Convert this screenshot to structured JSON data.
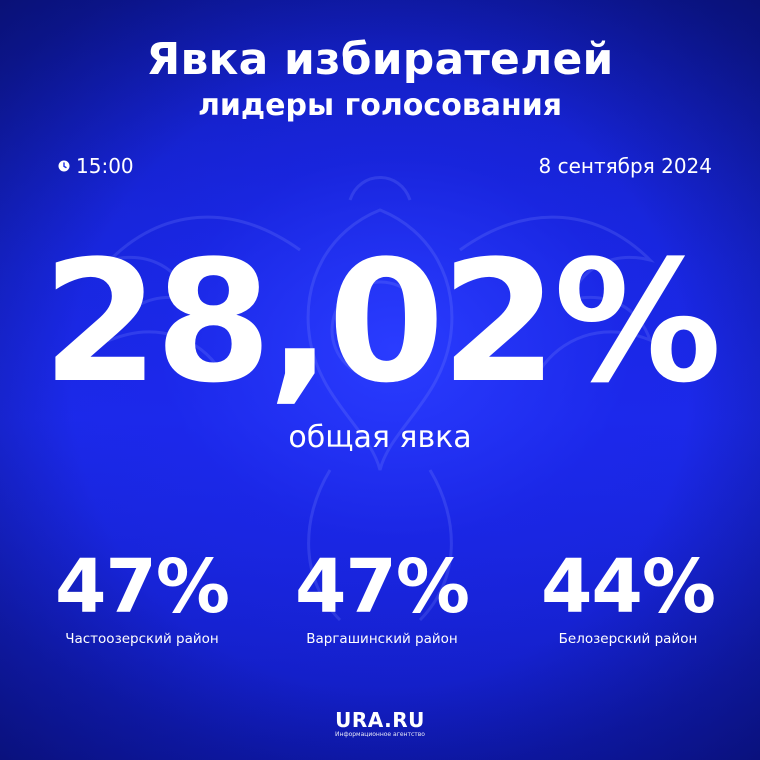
{
  "header": {
    "title": "Явка избирателей",
    "subtitle": "лидеры голосования"
  },
  "meta": {
    "time": "15:00",
    "date": "8 сентября 2024",
    "time_icon": "clock-icon"
  },
  "total": {
    "value": "28,02%",
    "label": "общая явка"
  },
  "districts": [
    {
      "value": "47%",
      "name": "Частоозерский район"
    },
    {
      "value": "47%",
      "name": "Варгашинский район"
    },
    {
      "value": "44%",
      "name": "Белозерский район"
    }
  ],
  "footer": {
    "brand": "URA.RU",
    "tagline": "Информационное агентство"
  },
  "colors": {
    "background": "#1a2ae6",
    "text": "#ffffff"
  }
}
